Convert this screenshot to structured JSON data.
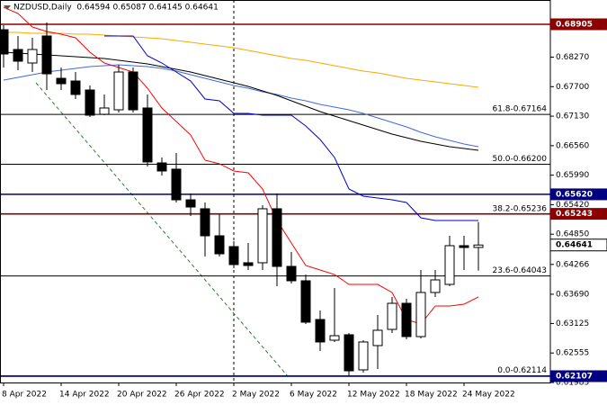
{
  "chart_data": {
    "type": "candlestick",
    "title": "NZDUSD,Daily  0.64594 0.65087 0.64145 0.64641",
    "categories": [
      "8 Apr 2022",
      null,
      null,
      null,
      "14 Apr 2022",
      null,
      null,
      null,
      "20 Apr 2022",
      null,
      null,
      null,
      "26 Apr 2022",
      null,
      null,
      null,
      "2 May 2022",
      null,
      null,
      null,
      "6 May 2022",
      null,
      null,
      null,
      "12 May 2022",
      null,
      null,
      null,
      "18 May 2022",
      null,
      null,
      null,
      "24 May 2022",
      null
    ],
    "open": [
      0.688,
      0.68418,
      0.68157,
      0.68679,
      0.67861,
      0.67809,
      0.67635,
      0.67166,
      0.67253,
      0.67983,
      0.67288,
      0.66227,
      0.66106,
      0.65514,
      0.65341,
      0.64819,
      0.6461,
      0.64298,
      0.64298,
      0.65341,
      0.64228,
      0.6395,
      0.63202,
      0.62802,
      0.62907,
      0.62229,
      0.62698,
      0.63011,
      0.63515,
      0.62872,
      0.63724,
      0.6388,
      0.64628,
      0.64594
    ],
    "high": [
      0.68887,
      0.68679,
      0.68644,
      0.68939,
      0.6807,
      0.67983,
      0.67722,
      0.67549,
      0.68122,
      0.6807,
      0.67549,
      0.66332,
      0.66419,
      0.65636,
      0.65462,
      0.65236,
      0.64715,
      0.6468,
      0.6541,
      0.65636,
      0.64506,
      0.64071,
      0.63376,
      0.63811,
      0.62941,
      0.62802,
      0.63289,
      0.63637,
      0.63602,
      0.64158,
      0.64158,
      0.64819,
      0.64819,
      0.65087
    ],
    "low": [
      0.6807,
      0.68018,
      0.67983,
      0.67635,
      0.67635,
      0.67462,
      0.67114,
      0.67149,
      0.67201,
      0.67201,
      0.66158,
      0.65984,
      0.65462,
      0.65202,
      0.64419,
      0.64419,
      0.64193,
      0.64158,
      0.64158,
      0.63845,
      0.63898,
      0.63115,
      0.62594,
      0.62768,
      0.6211,
      0.62177,
      0.62246,
      0.62941,
      0.6282,
      0.62837,
      0.63637,
      0.63845,
      0.64158,
      0.64145
    ],
    "close": [
      0.68331,
      0.68192,
      0.68418,
      0.67948,
      0.67757,
      0.67549,
      0.67149,
      0.67288,
      0.67983,
      0.67253,
      0.66245,
      0.66071,
      0.65514,
      0.65375,
      0.64819,
      0.64471,
      0.64263,
      0.64245,
      0.65341,
      0.64228,
      0.6395,
      0.6315,
      0.62768,
      0.62889,
      0.62211,
      0.62768,
      0.62994,
      0.63515,
      0.62872,
      0.63724,
      0.63967,
      0.64628,
      0.64593,
      0.64641
    ],
    "series": [
      {
        "color": "#ffa500",
        "values": [
          0.68748,
          0.68748,
          0.68731,
          0.68731,
          0.68731,
          0.68713,
          0.68713,
          0.68696,
          0.68679,
          0.68661,
          0.68644,
          0.68627,
          0.68592,
          0.68557,
          0.68522,
          0.68487,
          0.68453,
          0.684,
          0.68348,
          0.68296,
          0.68244,
          0.68209,
          0.68157,
          0.68105,
          0.68053,
          0.68001,
          0.67966,
          0.67914,
          0.67861,
          0.67827,
          0.67792,
          0.67757,
          0.67722,
          0.67688
        ]
      },
      {
        "color": "#4169e1",
        "values": [
          0.67827,
          0.67879,
          0.67931,
          0.67983,
          0.68018,
          0.68053,
          0.68087,
          0.68105,
          0.68122,
          0.68105,
          0.68087,
          0.68053,
          0.68001,
          0.67931,
          0.67861,
          0.67792,
          0.67722,
          0.6767,
          0.67601,
          0.67549,
          0.67479,
          0.67427,
          0.67358,
          0.67305,
          0.67253,
          0.67184,
          0.67097,
          0.6701,
          0.66923,
          0.66818,
          0.66731,
          0.66662,
          0.66592,
          0.6654
        ]
      },
      {
        "color": "#000000",
        "values": [
          0.68366,
          0.68348,
          0.68331,
          0.68313,
          0.68296,
          0.68279,
          0.68261,
          0.68244,
          0.68209,
          0.68174,
          0.6814,
          0.68087,
          0.68035,
          0.67983,
          0.67914,
          0.67844,
          0.67775,
          0.67705,
          0.67618,
          0.67531,
          0.67427,
          0.67323,
          0.67218,
          0.67131,
          0.67044,
          0.66958,
          0.66871,
          0.66784,
          0.66714,
          0.66645,
          0.66592,
          0.6654,
          0.66505,
          0.66471
        ]
      },
      {
        "color": "#0000cd",
        "values": [
          null,
          null,
          null,
          null,
          null,
          null,
          null,
          0.68679,
          0.68679,
          0.68679,
          0.68296,
          0.68157,
          0.67983,
          0.67809,
          0.67462,
          0.67427,
          0.67184,
          0.67184,
          0.67149,
          0.67149,
          0.67149,
          0.6694,
          0.66679,
          0.66332,
          0.65723,
          0.65584,
          0.65549,
          0.65514,
          0.65462,
          0.65167,
          0.65115,
          0.65115,
          0.65115,
          0.65115
        ]
      },
      {
        "color": "#ff0000",
        "values": [
          0.69235,
          0.69113,
          0.68852,
          0.68766,
          0.68713,
          0.68644,
          0.68366,
          0.68157,
          0.6807,
          0.67983,
          0.6767,
          0.67288,
          0.67027,
          0.66766,
          0.6628,
          0.6621,
          0.66071,
          0.66036,
          0.65723,
          0.65115,
          0.6468,
          0.64245,
          0.64158,
          0.64071,
          0.6388,
          0.6388,
          0.6388,
          0.63724,
          0.63202,
          0.63115,
          0.63463,
          0.63463,
          0.63498,
          0.63637
        ]
      }
    ],
    "up_color": "#ffffff",
    "down_color": "#000000",
    "ylim": [
      0.61985,
      0.69374
    ],
    "yticks": [
      {
        "value": 0.6827,
        "label": "0.68270"
      },
      {
        "value": 0.677,
        "label": "0.67700"
      },
      {
        "value": 0.6713,
        "label": "0.67130"
      },
      {
        "value": 0.6656,
        "label": "0.66560"
      },
      {
        "value": 0.6599,
        "label": "0.65990"
      },
      {
        "value": 0.6542,
        "label": "0.65420"
      },
      {
        "value": 0.6485,
        "label": "0.64850"
      },
      0.64266,
      {
        "value": 0.6369,
        "label": "0.63690"
      },
      0.63125,
      0.62555,
      0.61985
    ],
    "price_lines": [
      {
        "value": 0.68905,
        "color": "#8b0000"
      },
      {
        "value": 0.6562,
        "label": "0.65620",
        "color": "#000080"
      },
      {
        "value": 0.65243,
        "color": "#8b0000"
      },
      {
        "value": 0.62107,
        "color": "#000080"
      }
    ],
    "current_price": 0.64641,
    "fib_levels": [
      {
        "value": 0.67164,
        "label": "61.8-0.67164"
      },
      {
        "value": 0.662,
        "label": "50.0-0.66200"
      },
      {
        "value": 0.65236,
        "label": "38.2-0.65236"
      },
      {
        "value": 0.64043,
        "label": "23.6-0.64043"
      },
      {
        "value": 0.62114,
        "label": "0.0-0.62114"
      }
    ]
  }
}
